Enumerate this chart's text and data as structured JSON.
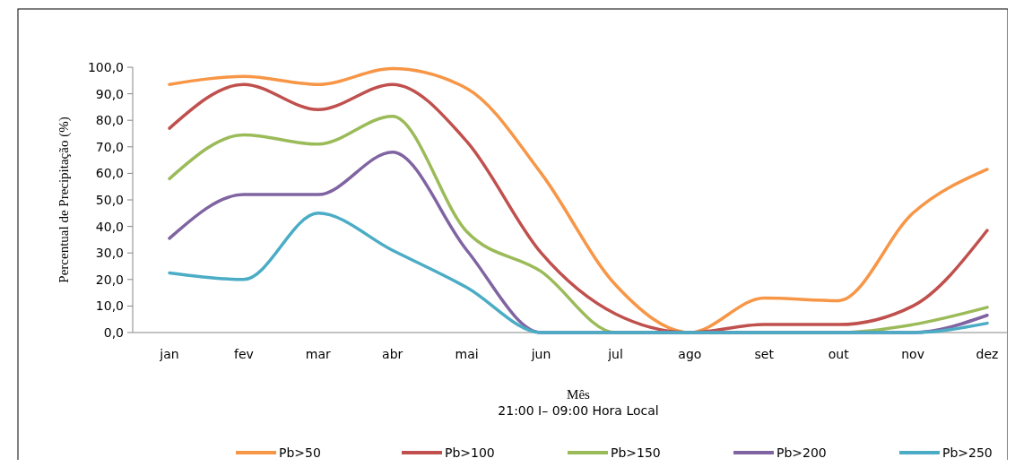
{
  "chart_data": {
    "type": "line",
    "xlabel": "Mês",
    "ylabel": "Percentual de Precipitação (%)",
    "annotations": [
      "21:00 I– 09:00 Hora Local"
    ],
    "categories": [
      "jan",
      "fev",
      "mar",
      "abr",
      "mai",
      "jun",
      "jul",
      "ago",
      "set",
      "out",
      "nov",
      "dez"
    ],
    "ylim": [
      0,
      100
    ],
    "yticks": [
      {
        "value": 0,
        "label": "0,0"
      },
      {
        "value": 10,
        "label": "10,0"
      },
      {
        "value": 20,
        "label": "20,0"
      },
      {
        "value": 30,
        "label": "30,0"
      },
      {
        "value": 40,
        "label": "40,0"
      },
      {
        "value": 50,
        "label": "50,0"
      },
      {
        "value": 60,
        "label": "60,0"
      },
      {
        "value": 70,
        "label": "70,0"
      },
      {
        "value": 80,
        "label": "80,0"
      },
      {
        "value": 90,
        "label": "90,0"
      },
      {
        "value": 100,
        "label": "100,0"
      }
    ],
    "grid": false,
    "legend": "bottom",
    "marker": "none",
    "line_style": "solid",
    "series": [
      {
        "name": "Pb>50",
        "color": "#f79646",
        "values": [
          93.5,
          96.5,
          93.5,
          99.5,
          92,
          60,
          18,
          0,
          13,
          12,
          45,
          61.5
        ]
      },
      {
        "name": "Pb>100",
        "color": "#c0504d",
        "values": [
          77,
          93.5,
          84,
          93.5,
          72,
          30,
          7,
          0,
          3,
          3,
          10,
          38.5
        ]
      },
      {
        "name": "Pb>150",
        "color": "#9bbb59",
        "values": [
          58,
          74.5,
          71,
          81.5,
          38,
          23,
          0,
          0,
          0,
          0,
          3,
          9.5
        ]
      },
      {
        "name": "Pb>200",
        "color": "#8064a2",
        "values": [
          35.5,
          52,
          52,
          68,
          31,
          0,
          0,
          0,
          0,
          0,
          0,
          6.5
        ]
      },
      {
        "name": "Pb>250",
        "color": "#4bacc6",
        "values": [
          22.5,
          20,
          45,
          31,
          17,
          0,
          0,
          0,
          0,
          0,
          0,
          3.5
        ]
      }
    ]
  }
}
